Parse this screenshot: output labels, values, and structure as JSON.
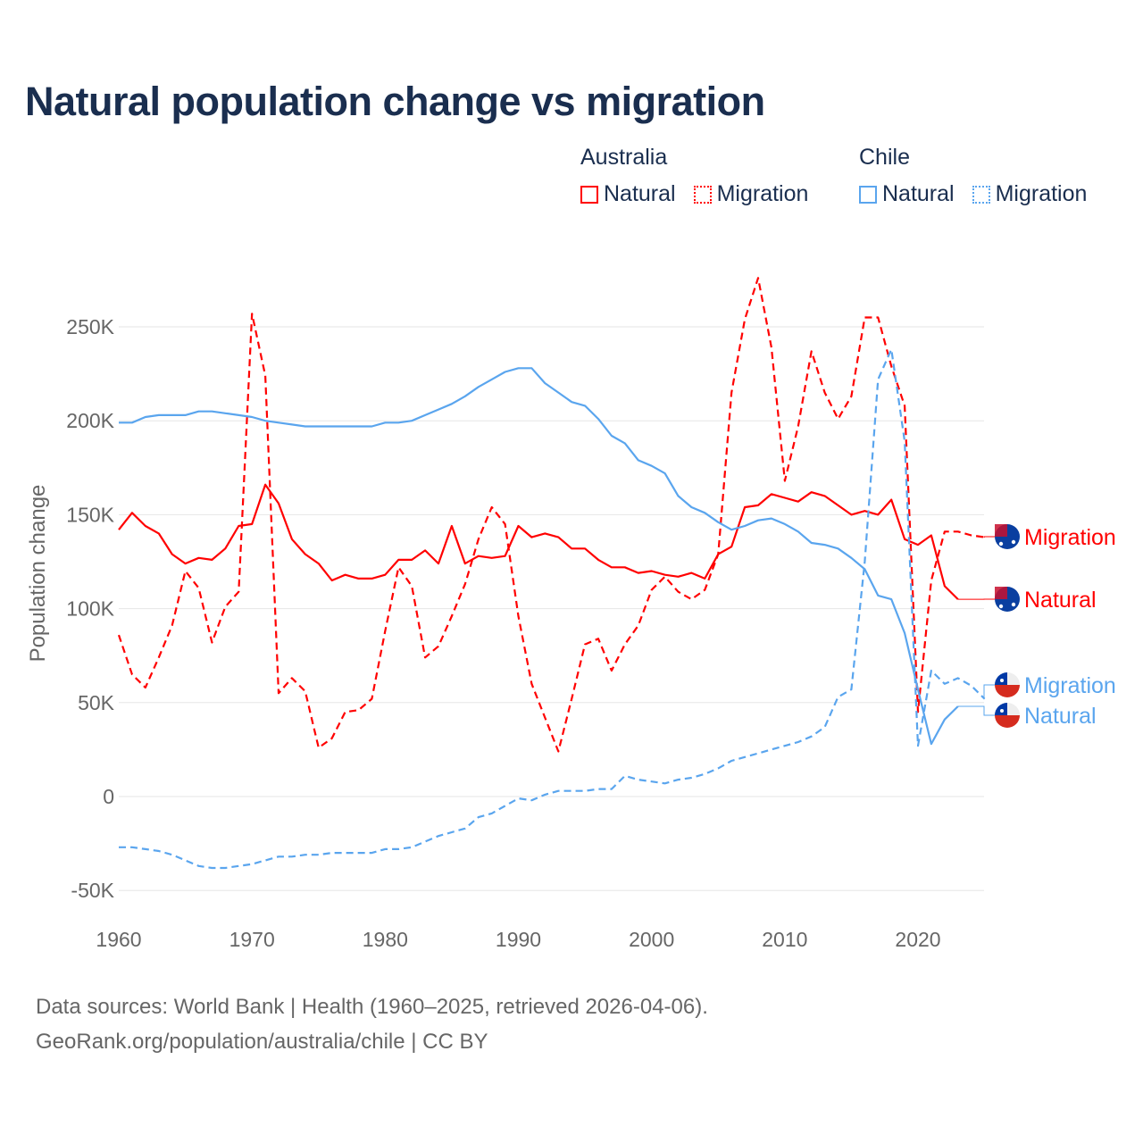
{
  "title": "Natural population change vs migration",
  "legend": {
    "groups": [
      {
        "country": "Australia",
        "items": [
          "Natural",
          "Migration"
        ]
      },
      {
        "country": "Chile",
        "items": [
          "Natural",
          "Migration"
        ]
      }
    ]
  },
  "colors": {
    "australia": "#ff0000",
    "chile": "#5aa5ee",
    "grid": "#e6e6e6",
    "axis_text": "#666666",
    "title": "#1a2e4f"
  },
  "source": {
    "line1": "Data sources: World Bank | Health (1960–2025, retrieved 2026-04-06).",
    "line2": "GeoRank.org/population/australia/chile | CC BY"
  },
  "chart_data": {
    "type": "line",
    "title": "Natural population change vs migration",
    "xlabel": "",
    "ylabel": "Population change",
    "xlim": [
      1960,
      2025
    ],
    "ylim": [
      -50000,
      270000
    ],
    "xticks": [
      1960,
      1970,
      1980,
      1990,
      2000,
      2010,
      2020
    ],
    "xtick_labels": [
      "1960",
      "1970",
      "1980",
      "1990",
      "2000",
      "2010",
      "2020"
    ],
    "yticks": [
      -50000,
      0,
      50000,
      100000,
      150000,
      200000,
      250000
    ],
    "ytick_labels": [
      "-50K",
      "0",
      "50K",
      "100K",
      "150K",
      "200K",
      "250K"
    ],
    "grid": true,
    "legend_position": "top-right",
    "series": [
      {
        "name": "Australia Natural",
        "label": "Natural",
        "country": "australia",
        "dashed": false,
        "start": 1960,
        "values": [
          142000,
          151000,
          144000,
          140000,
          129000,
          124000,
          127000,
          126000,
          132000,
          144000,
          145000,
          166000,
          156000,
          137000,
          129000,
          124000,
          115000,
          118000,
          116000,
          116000,
          118000,
          126000,
          126000,
          131000,
          124000,
          144000,
          124000,
          128000,
          127000,
          128000,
          144000,
          138000,
          140000,
          138000,
          132000,
          132000,
          126000,
          122000,
          122000,
          119000,
          120000,
          118000,
          117000,
          119000,
          116000,
          129000,
          133000,
          154000,
          155000,
          161000,
          159000,
          157000,
          162000,
          160000,
          155000,
          150000,
          152000,
          150000,
          158000,
          137000,
          134000,
          139000,
          112000,
          105000
        ]
      },
      {
        "name": "Australia Migration",
        "label": "Migration",
        "country": "australia",
        "dashed": true,
        "start": 1960,
        "values": [
          86000,
          65000,
          58000,
          74000,
          91000,
          120000,
          111000,
          82000,
          101000,
          109000,
          257000,
          224000,
          55000,
          63000,
          56000,
          26000,
          31000,
          45000,
          46000,
          52000,
          88000,
          122000,
          112000,
          74000,
          80000,
          96000,
          113000,
          137000,
          154000,
          145000,
          96000,
          60000,
          42000,
          24000,
          52000,
          81000,
          84000,
          67000,
          81000,
          91000,
          110000,
          117000,
          109000,
          105000,
          110000,
          129000,
          215000,
          254000,
          276000,
          239000,
          168000,
          197000,
          237000,
          215000,
          201000,
          213000,
          255000,
          255000,
          229000,
          208000,
          45000,
          115000,
          141000,
          141000,
          139000,
          138000
        ]
      },
      {
        "name": "Chile Natural",
        "label": "Natural",
        "country": "chile",
        "dashed": false,
        "start": 1960,
        "values": [
          199000,
          199000,
          202000,
          203000,
          203000,
          203000,
          205000,
          205000,
          204000,
          203000,
          202000,
          200000,
          199000,
          198000,
          197000,
          197000,
          197000,
          197000,
          197000,
          197000,
          199000,
          199000,
          200000,
          203000,
          206000,
          209000,
          213000,
          218000,
          222000,
          226000,
          228000,
          228000,
          220000,
          215000,
          210000,
          208000,
          201000,
          192000,
          188000,
          179000,
          176000,
          172000,
          160000,
          154000,
          151000,
          146000,
          142000,
          144000,
          147000,
          148000,
          145000,
          141000,
          135000,
          134000,
          132000,
          127000,
          121000,
          107000,
          105000,
          87000,
          57000,
          28000,
          41000,
          48000
        ]
      },
      {
        "name": "Chile Migration",
        "label": "Migration",
        "country": "chile",
        "dashed": true,
        "start": 1960,
        "values": [
          -27000,
          -27000,
          -28000,
          -29000,
          -31000,
          -34000,
          -37000,
          -38000,
          -38000,
          -37000,
          -36000,
          -34000,
          -32000,
          -32000,
          -31000,
          -31000,
          -30000,
          -30000,
          -30000,
          -30000,
          -28000,
          -28000,
          -27000,
          -24000,
          -21000,
          -19000,
          -17000,
          -11000,
          -9000,
          -5000,
          -1000,
          -2000,
          1000,
          3000,
          3000,
          3000,
          4000,
          4000,
          11000,
          9000,
          8000,
          7000,
          9000,
          10000,
          12000,
          15000,
          19000,
          21000,
          23000,
          25000,
          27000,
          29000,
          32000,
          37000,
          53000,
          57000,
          125000,
          222000,
          238000,
          189000,
          27000,
          67000,
          60000,
          63000,
          59000,
          52000
        ]
      }
    ]
  }
}
